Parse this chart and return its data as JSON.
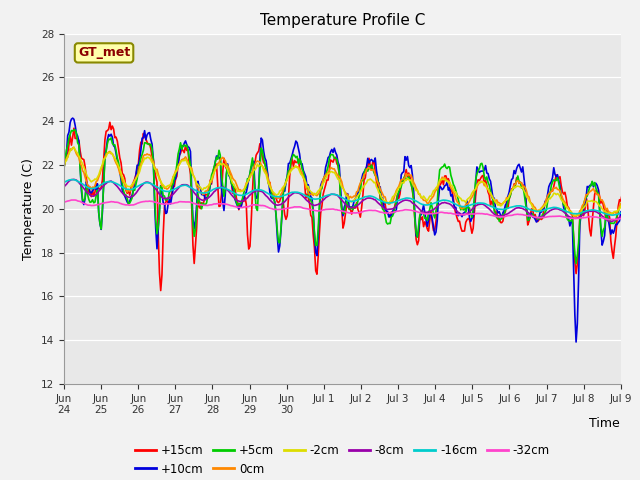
{
  "title": "Temperature Profile C",
  "xlabel": "Time",
  "ylabel": "Temperature (C)",
  "ylim": [
    12,
    28
  ],
  "yticks": [
    12,
    14,
    16,
    18,
    20,
    22,
    24,
    26,
    28
  ],
  "bg_color": "#e8e8e8",
  "legend_label": "GT_met",
  "series_order": [
    "+15cm",
    "+10cm",
    "+5cm",
    "0cm",
    "-2cm",
    "-8cm",
    "-16cm",
    "-32cm"
  ],
  "series": {
    "+15cm": {
      "color": "#ff0000",
      "lw": 1.2
    },
    "+10cm": {
      "color": "#0000dd",
      "lw": 1.2
    },
    "+5cm": {
      "color": "#00cc00",
      "lw": 1.2
    },
    "0cm": {
      "color": "#ff8800",
      "lw": 1.2
    },
    "-2cm": {
      "color": "#dddd00",
      "lw": 1.2
    },
    "-8cm": {
      "color": "#9900aa",
      "lw": 1.2
    },
    "-16cm": {
      "color": "#00cccc",
      "lw": 1.2
    },
    "-32cm": {
      "color": "#ff44cc",
      "lw": 1.2
    }
  },
  "xtick_labels": [
    "Jun\n24",
    "Jun\n25",
    "Jun\n26",
    "Jun\n27",
    "Jun\n28",
    "Jun\n29",
    "Jun\n30",
    "Jul 1",
    "Jul 2",
    "Jul 3",
    "Jul 4",
    "Jul 5",
    "Jul 6",
    "Jul 7",
    "Jul 8",
    "Jul 9"
  ],
  "n_points": 480,
  "days": 16
}
